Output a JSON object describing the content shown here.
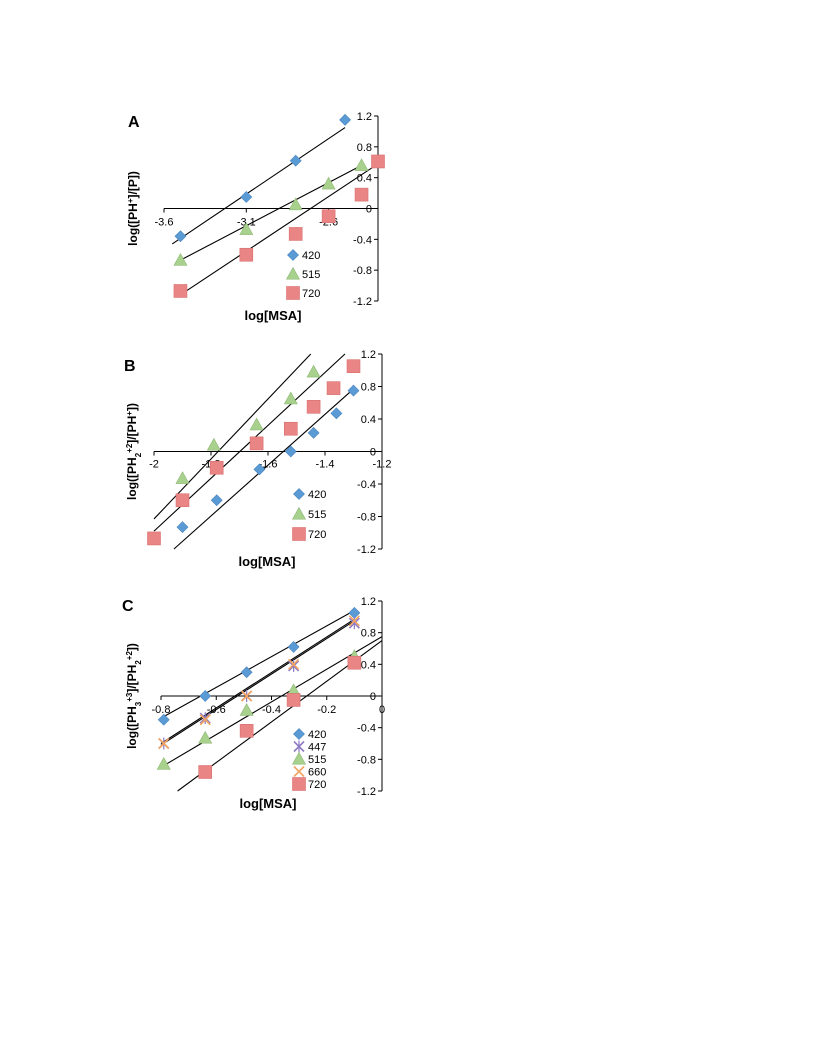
{
  "chart_data": [
    {
      "panel_label": "A",
      "type": "scatter",
      "xlabel": "log[MSA]",
      "ylabel": "log([PH+]/[P])",
      "ylabel_parts": [
        {
          "t": "log([PH",
          "s": "n"
        },
        {
          "t": "+",
          "s": "sup"
        },
        {
          "t": "]/[P])",
          "s": "n"
        }
      ],
      "xlim": [
        -3.6,
        -2.3
      ],
      "ylim": [
        -1.2,
        1.2
      ],
      "xticks": [
        -3.6,
        -3.1,
        -2.6
      ],
      "xtick_labels": [
        "-3.6",
        "-3.1",
        "-2.6"
      ],
      "yticks": [
        -1.2,
        -0.8,
        -0.4,
        0,
        0.4,
        0.8,
        1.2
      ],
      "ytick_labels": [
        "-1.2",
        "-0.8",
        "-0.4",
        "0",
        "0.4",
        "0.8",
        "1.2"
      ],
      "series": [
        {
          "name": "420",
          "marker": "diamond",
          "color": "#5b9bd5",
          "x": [
            -3.5,
            -3.1,
            -2.8,
            -2.5
          ],
          "y": [
            -0.36,
            0.15,
            0.62,
            1.15
          ],
          "fit": [
            [
              -3.55,
              -0.46
            ],
            [
              -2.5,
              1.05
            ]
          ]
        },
        {
          "name": "515",
          "marker": "triangle",
          "color": "#a9d18e",
          "x": [
            -3.5,
            -3.1,
            -2.8,
            -2.6,
            -2.4
          ],
          "y": [
            -0.67,
            -0.27,
            0.05,
            0.32,
            0.56
          ],
          "fit": [
            [
              -3.5,
              -0.67
            ],
            [
              -2.4,
              0.56
            ]
          ]
        },
        {
          "name": "720",
          "marker": "square",
          "color": "#ea8585",
          "x": [
            -3.5,
            -3.1,
            -2.8,
            -2.6,
            -2.4,
            -2.3
          ],
          "y": [
            -1.07,
            -0.6,
            -0.33,
            -0.1,
            0.18,
            0.61
          ],
          "fit": [
            [
              -3.5,
              -1.12
            ],
            [
              -2.3,
              0.58
            ]
          ]
        }
      ]
    },
    {
      "panel_label": "B",
      "type": "scatter",
      "xlabel": "log[MSA]",
      "ylabel": "log([PH2+2]/[PH+])",
      "ylabel_parts": [
        {
          "t": "log([PH",
          "s": "n"
        },
        {
          "t": "2",
          "s": "sub"
        },
        {
          "t": "+2",
          "s": "sup"
        },
        {
          "t": "]/[PH",
          "s": "n"
        },
        {
          "t": "+",
          "s": "sup"
        },
        {
          "t": "])",
          "s": "n"
        }
      ],
      "xlim": [
        -2.0,
        -1.2
      ],
      "ylim": [
        -1.2,
        1.2
      ],
      "xticks": [
        -2.0,
        -1.8,
        -1.6,
        -1.4,
        -1.2
      ],
      "xtick_labels": [
        "-2",
        "-1.8",
        "-1.6",
        "-1.4",
        "-1.2"
      ],
      "yticks": [
        -1.2,
        -0.8,
        -0.4,
        0,
        0.4,
        0.8,
        1.2
      ],
      "ytick_labels": [
        "-1.2",
        "-0.8",
        "-0.4",
        "0",
        "0.4",
        "0.8",
        "1.2"
      ],
      "series": [
        {
          "name": "420",
          "marker": "diamond",
          "color": "#5b9bd5",
          "x": [
            -1.9,
            -1.78,
            -1.63,
            -1.52,
            -1.44,
            -1.36,
            -1.3
          ],
          "y": [
            -0.93,
            -0.6,
            -0.22,
            0.0,
            0.23,
            0.47,
            0.75
          ],
          "fit": [
            [
              -1.93,
              -1.2
            ],
            [
              -1.3,
              0.77
            ]
          ]
        },
        {
          "name": "515",
          "marker": "triangle",
          "color": "#a9d18e",
          "x": [
            -1.9,
            -1.79,
            -1.64,
            -1.52,
            -1.44
          ],
          "y": [
            -0.33,
            0.08,
            0.33,
            0.65,
            0.98
          ],
          "fit": [
            [
              -2.0,
              -0.83
            ],
            [
              -1.45,
              1.2
            ]
          ]
        },
        {
          "name": "720",
          "marker": "square",
          "color": "#ea8585",
          "x": [
            -2.0,
            -1.9,
            -1.78,
            -1.64,
            -1.52,
            -1.44,
            -1.37,
            -1.3
          ],
          "y": [
            -1.07,
            -0.6,
            -0.2,
            0.1,
            0.28,
            0.55,
            0.78,
            1.05
          ],
          "fit": [
            [
              -2.0,
              -0.98
            ],
            [
              -1.33,
              1.2
            ]
          ]
        }
      ]
    },
    {
      "panel_label": "C",
      "type": "scatter",
      "xlabel": "log[MSA]",
      "ylabel": "log([PH3+3]/[PH2+2])",
      "ylabel_parts": [
        {
          "t": "log([PH",
          "s": "n"
        },
        {
          "t": "3",
          "s": "sub"
        },
        {
          "t": "+3",
          "s": "sup"
        },
        {
          "t": "]/[PH",
          "s": "n"
        },
        {
          "t": "2",
          "s": "sub"
        },
        {
          "t": "+2",
          "s": "sup"
        },
        {
          "t": "])",
          "s": "n"
        }
      ],
      "xlim": [
        -0.8,
        0.0
      ],
      "ylim": [
        -1.2,
        1.2
      ],
      "xticks": [
        -0.8,
        -0.6,
        -0.4,
        -0.2,
        0.0
      ],
      "xtick_labels": [
        "-0.8",
        "-0.6",
        "-0.4",
        "-0.2",
        "0"
      ],
      "yticks": [
        -1.2,
        -0.8,
        -0.4,
        0,
        0.4,
        0.8,
        1.2
      ],
      "ytick_labels": [
        "-1.2",
        "-0.8",
        "-0.4",
        "0",
        "0.4",
        "0.8",
        "1.2"
      ],
      "series": [
        {
          "name": "420",
          "marker": "diamond",
          "color": "#5b9bd5",
          "x": [
            -0.79,
            -0.64,
            -0.49,
            -0.32,
            -0.1
          ],
          "y": [
            -0.3,
            0.0,
            0.3,
            0.62,
            1.05
          ],
          "fit": [
            [
              -0.8,
              -0.28
            ],
            [
              -0.1,
              1.08
            ]
          ]
        },
        {
          "name": "447",
          "marker": "x-star",
          "color": "#8e7cc3",
          "x": [
            -0.79,
            -0.64,
            -0.49,
            -0.32,
            -0.1
          ],
          "y": [
            -0.6,
            -0.28,
            0.0,
            0.38,
            0.92
          ],
          "fit": [
            [
              -0.8,
              -0.62
            ],
            [
              -0.1,
              0.95
            ]
          ]
        },
        {
          "name": "515",
          "marker": "triangle",
          "color": "#a9d18e",
          "x": [
            -0.79,
            -0.64,
            -0.49,
            -0.32,
            -0.1
          ],
          "y": [
            -0.86,
            -0.53,
            -0.18,
            0.07,
            0.5
          ],
          "fit": [
            [
              -0.8,
              -0.9
            ],
            [
              0.0,
              0.75
            ]
          ]
        },
        {
          "name": "660",
          "marker": "x",
          "color": "#f4a460",
          "x": [
            -0.79,
            -0.64,
            -0.49,
            -0.32,
            -0.1
          ],
          "y": [
            -0.6,
            -0.3,
            0.0,
            0.4,
            0.95
          ],
          "fit": [
            [
              -0.8,
              -0.6
            ],
            [
              -0.1,
              0.97
            ]
          ]
        },
        {
          "name": "720",
          "marker": "square",
          "color": "#ea8585",
          "x": [
            -0.64,
            -0.49,
            -0.32,
            -0.1
          ],
          "y": [
            -0.96,
            -0.44,
            -0.05,
            0.42
          ],
          "fit": [
            [
              -0.74,
              -1.2
            ],
            [
              0.0,
              0.7
            ]
          ]
        }
      ]
    }
  ]
}
